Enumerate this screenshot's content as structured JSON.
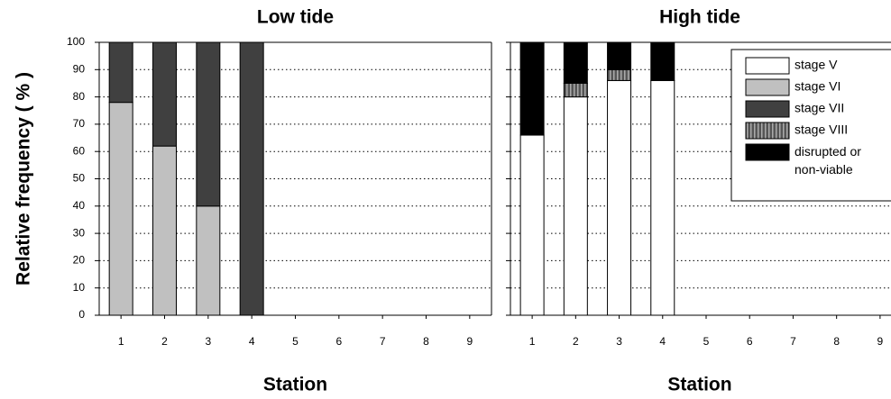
{
  "chart_data": [
    {
      "type": "bar",
      "stacked": true,
      "title": "Low tide",
      "x_label": "Station",
      "y_label": "Relative frequency ( % )",
      "categories": [
        "1",
        "2",
        "3",
        "4",
        "5",
        "6",
        "7",
        "8",
        "9"
      ],
      "series": [
        {
          "name": "stage V",
          "color": "#ffffff",
          "values": [
            null,
            null,
            null,
            null,
            null,
            null,
            null,
            null,
            null
          ]
        },
        {
          "name": "stage VI",
          "color": "#c0c0c0",
          "values": [
            78,
            62,
            40,
            null,
            null,
            null,
            null,
            null,
            null
          ]
        },
        {
          "name": "stage VII",
          "color": "#404040",
          "values": [
            22,
            38,
            60,
            100,
            null,
            null,
            null,
            null,
            null
          ]
        },
        {
          "name": "stage VIII",
          "color": "#555555",
          "hatch": true,
          "values": [
            null,
            null,
            null,
            null,
            null,
            null,
            null,
            null,
            null
          ]
        },
        {
          "name": "disrupted or non-viable",
          "color": "#000000",
          "values": [
            null,
            null,
            null,
            null,
            null,
            null,
            null,
            null,
            null
          ]
        }
      ],
      "ylim": [
        0,
        100
      ],
      "yticks": [
        0,
        10,
        20,
        30,
        40,
        50,
        60,
        70,
        80,
        90,
        100
      ],
      "grid": true,
      "legend": false
    },
    {
      "type": "bar",
      "stacked": true,
      "title": "High tide",
      "x_label": "Station",
      "categories": [
        "1",
        "2",
        "3",
        "4",
        "5",
        "6",
        "7",
        "8",
        "9"
      ],
      "series": [
        {
          "name": "stage V",
          "color": "#ffffff",
          "values": [
            66,
            80,
            86,
            86,
            null,
            null,
            null,
            null,
            null
          ]
        },
        {
          "name": "stage VI",
          "color": "#c0c0c0",
          "values": [
            null,
            null,
            null,
            null,
            null,
            null,
            null,
            null,
            null
          ]
        },
        {
          "name": "stage VII",
          "color": "#404040",
          "values": [
            null,
            null,
            null,
            null,
            null,
            null,
            null,
            null,
            null
          ]
        },
        {
          "name": "stage VIII",
          "color": "#555555",
          "hatch": true,
          "values": [
            null,
            5,
            4,
            null,
            null,
            null,
            null,
            null,
            null
          ]
        },
        {
          "name": "disrupted or non-viable",
          "color": "#000000",
          "values": [
            34,
            15,
            10,
            14,
            null,
            null,
            null,
            null,
            null
          ]
        }
      ],
      "ylim": [
        0,
        100
      ],
      "yticks": [
        0,
        10,
        20,
        30,
        40,
        50,
        60,
        70,
        80,
        90,
        100
      ],
      "grid": true,
      "legend": "upper right"
    }
  ]
}
